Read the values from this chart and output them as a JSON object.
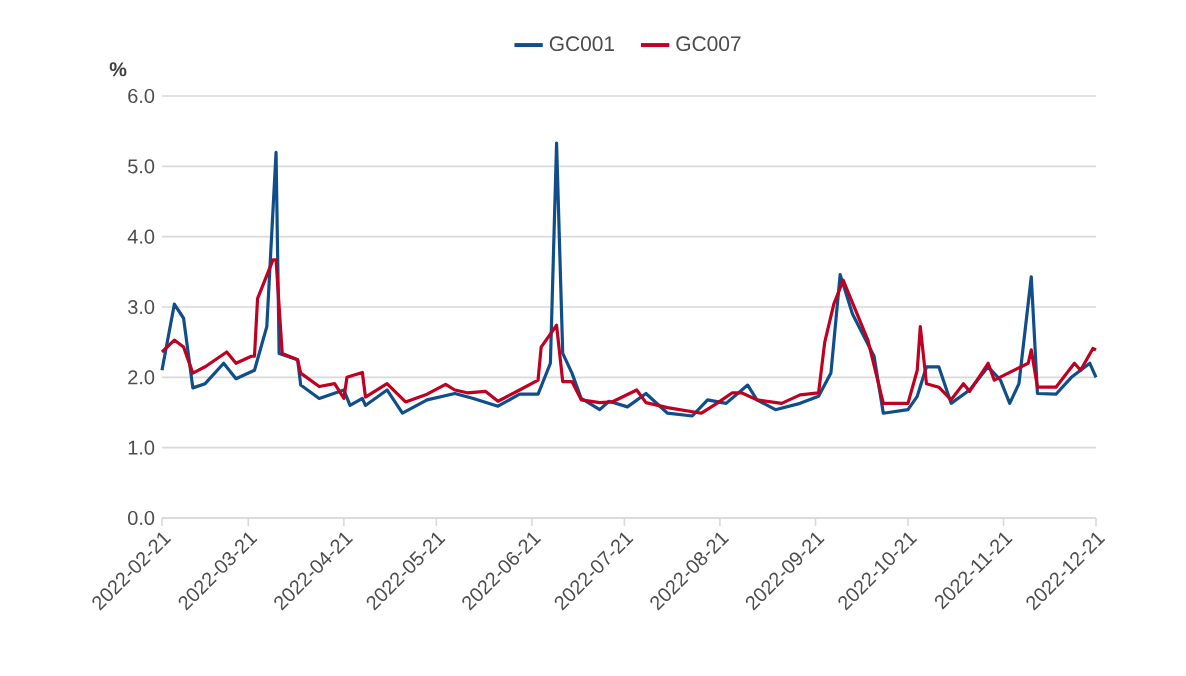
{
  "chart_data": {
    "type": "line",
    "ylabel": "%",
    "xlim": [
      "2022-02-21",
      "2022-12-21"
    ],
    "xticks": [
      "2022-02-21",
      "2022-03-21",
      "2022-04-21",
      "2022-05-21",
      "2022-06-21",
      "2022-07-21",
      "2022-08-21",
      "2022-09-21",
      "2022-10-21",
      "2022-11-21",
      "2022-12-21"
    ],
    "ylim": [
      0,
      6
    ],
    "yticks": [
      {
        "value": 0,
        "label": "0.0"
      },
      {
        "value": 1,
        "label": "1.0"
      },
      {
        "value": 2,
        "label": "2.0"
      },
      {
        "value": 3,
        "label": "3.0"
      },
      {
        "value": 4,
        "label": "4.0"
      },
      {
        "value": 5,
        "label": "5.0"
      },
      {
        "value": 6,
        "label": "6.0"
      }
    ],
    "grid": "y",
    "legend": "top",
    "marker": "none",
    "line_style": "solid",
    "series": [
      {
        "name": "GC001",
        "color": "#0f4e8a",
        "x": [
          "2022-02-21",
          "2022-02-25",
          "2022-02-28",
          "2022-03-03",
          "2022-03-07",
          "2022-03-13",
          "2022-03-17",
          "2022-03-23",
          "2022-03-27",
          "2022-03-30",
          "2022-03-31",
          "2022-04-06",
          "2022-04-07",
          "2022-04-13",
          "2022-04-21",
          "2022-04-23",
          "2022-04-27",
          "2022-04-28",
          "2022-05-05",
          "2022-05-10",
          "2022-05-18",
          "2022-05-27",
          "2022-06-02",
          "2022-06-10",
          "2022-06-17",
          "2022-06-23",
          "2022-06-27",
          "2022-06-29",
          "2022-07-01",
          "2022-07-04",
          "2022-07-07",
          "2022-07-13",
          "2022-07-16",
          "2022-07-22",
          "2022-07-28",
          "2022-08-04",
          "2022-08-12",
          "2022-08-17",
          "2022-08-23",
          "2022-08-30",
          "2022-09-02",
          "2022-09-08",
          "2022-09-16",
          "2022-09-22",
          "2022-09-26",
          "2022-09-29",
          "2022-10-03",
          "2022-10-10",
          "2022-10-13",
          "2022-10-21",
          "2022-10-24",
          "2022-10-27",
          "2022-10-31",
          "2022-11-04",
          "2022-11-10",
          "2022-11-16",
          "2022-11-20",
          "2022-11-23",
          "2022-11-26",
          "2022-11-30",
          "2022-12-02",
          "2022-12-08",
          "2022-12-13",
          "2022-12-19",
          "2022-12-21"
        ],
        "values": [
          2.1,
          3.04,
          2.84,
          1.85,
          1.91,
          2.2,
          1.98,
          2.1,
          2.72,
          5.2,
          2.34,
          2.25,
          1.89,
          1.7,
          1.82,
          1.6,
          1.7,
          1.6,
          1.82,
          1.49,
          1.68,
          1.77,
          1.7,
          1.59,
          1.76,
          1.76,
          2.2,
          5.33,
          2.34,
          2.06,
          1.7,
          1.54,
          1.66,
          1.58,
          1.77,
          1.49,
          1.45,
          1.68,
          1.63,
          1.89,
          1.68,
          1.54,
          1.63,
          1.73,
          2.06,
          3.46,
          2.9,
          2.3,
          1.49,
          1.54,
          1.73,
          2.15,
          2.15,
          1.63,
          1.82,
          2.15,
          1.96,
          1.63,
          1.91,
          3.43,
          1.77,
          1.76,
          2.0,
          2.2,
          2.0
        ]
      },
      {
        "name": "GC007",
        "color": "#c00020",
        "x": [
          "2022-02-21",
          "2022-02-25",
          "2022-02-28",
          "2022-03-03",
          "2022-03-07",
          "2022-03-14",
          "2022-03-17",
          "2022-03-22",
          "2022-03-23",
          "2022-03-24",
          "2022-03-29",
          "2022-03-30",
          "2022-04-01",
          "2022-04-06",
          "2022-04-07",
          "2022-04-13",
          "2022-04-18",
          "2022-04-21",
          "2022-04-22",
          "2022-04-27",
          "2022-04-28",
          "2022-05-05",
          "2022-05-11",
          "2022-05-18",
          "2022-05-24",
          "2022-05-27",
          "2022-05-31",
          "2022-06-06",
          "2022-06-10",
          "2022-06-17",
          "2022-06-23",
          "2022-06-24",
          "2022-06-29",
          "2022-07-01",
          "2022-07-04",
          "2022-07-07",
          "2022-07-13",
          "2022-07-17",
          "2022-07-25",
          "2022-07-28",
          "2022-08-04",
          "2022-08-15",
          "2022-08-20",
          "2022-08-25",
          "2022-08-28",
          "2022-09-02",
          "2022-09-10",
          "2022-09-16",
          "2022-09-22",
          "2022-09-24",
          "2022-09-27",
          "2022-09-30",
          "2022-10-08",
          "2022-10-13",
          "2022-10-21",
          "2022-10-24",
          "2022-10-25",
          "2022-10-27",
          "2022-10-31",
          "2022-11-04",
          "2022-11-08",
          "2022-11-10",
          "2022-11-16",
          "2022-11-18",
          "2022-11-29",
          "2022-11-30",
          "2022-12-02",
          "2022-12-08",
          "2022-12-14",
          "2022-12-16",
          "2022-12-20",
          "2022-12-21"
        ],
        "values": [
          2.36,
          2.53,
          2.43,
          2.06,
          2.15,
          2.36,
          2.2,
          2.3,
          2.3,
          3.12,
          3.67,
          3.67,
          2.34,
          2.25,
          2.06,
          1.87,
          1.91,
          1.7,
          2.0,
          2.07,
          1.72,
          1.91,
          1.65,
          1.76,
          1.9,
          1.82,
          1.78,
          1.8,
          1.66,
          1.82,
          1.96,
          2.43,
          2.74,
          1.94,
          1.94,
          1.68,
          1.64,
          1.65,
          1.82,
          1.64,
          1.57,
          1.49,
          1.63,
          1.78,
          1.78,
          1.68,
          1.63,
          1.75,
          1.78,
          2.5,
          3.05,
          3.38,
          2.53,
          1.63,
          1.63,
          2.1,
          2.72,
          1.91,
          1.86,
          1.68,
          1.91,
          1.8,
          2.2,
          1.96,
          2.2,
          2.39,
          1.86,
          1.86,
          2.2,
          2.1,
          2.41,
          2.39
        ]
      }
    ]
  }
}
